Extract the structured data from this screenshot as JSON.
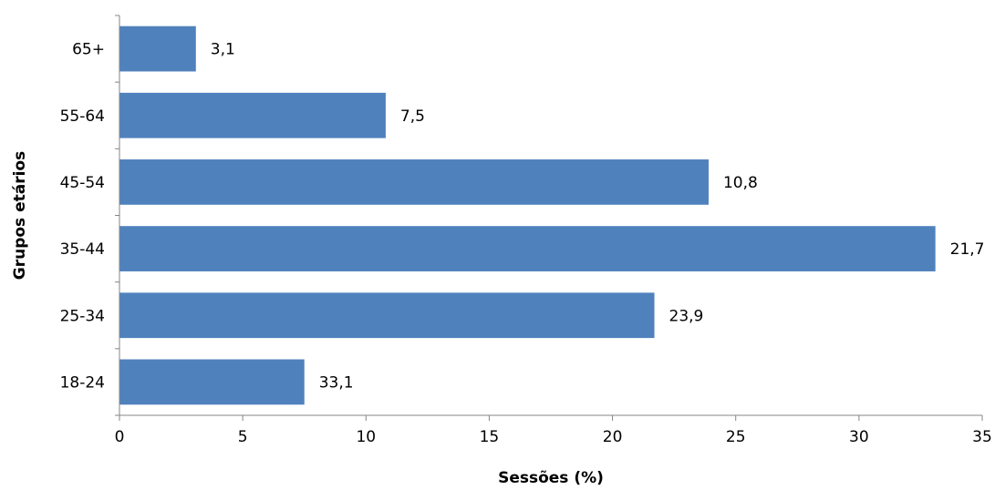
{
  "chart_data": {
    "type": "bar",
    "orientation": "horizontal",
    "categories": [
      "18-24",
      "25-34",
      "35-44",
      "45-54",
      "55-64",
      "65+"
    ],
    "bar_lengths": [
      7.5,
      21.7,
      33.1,
      23.9,
      10.8,
      3.1
    ],
    "data_labels": [
      "33,1",
      "23,9",
      "21,7",
      "10,8",
      "7,5",
      "3,1"
    ],
    "xlabel": "Sessões (%)",
    "ylabel": "Grupos etários",
    "xlim": [
      0,
      35
    ],
    "x_ticks": [
      "0",
      "5",
      "10",
      "15",
      "20",
      "25",
      "30",
      "35"
    ],
    "x_tick_values": [
      0,
      5,
      10,
      15,
      20,
      25,
      30,
      35
    ],
    "bar_color": "#4F81BD",
    "grid": false,
    "legend": "none"
  }
}
